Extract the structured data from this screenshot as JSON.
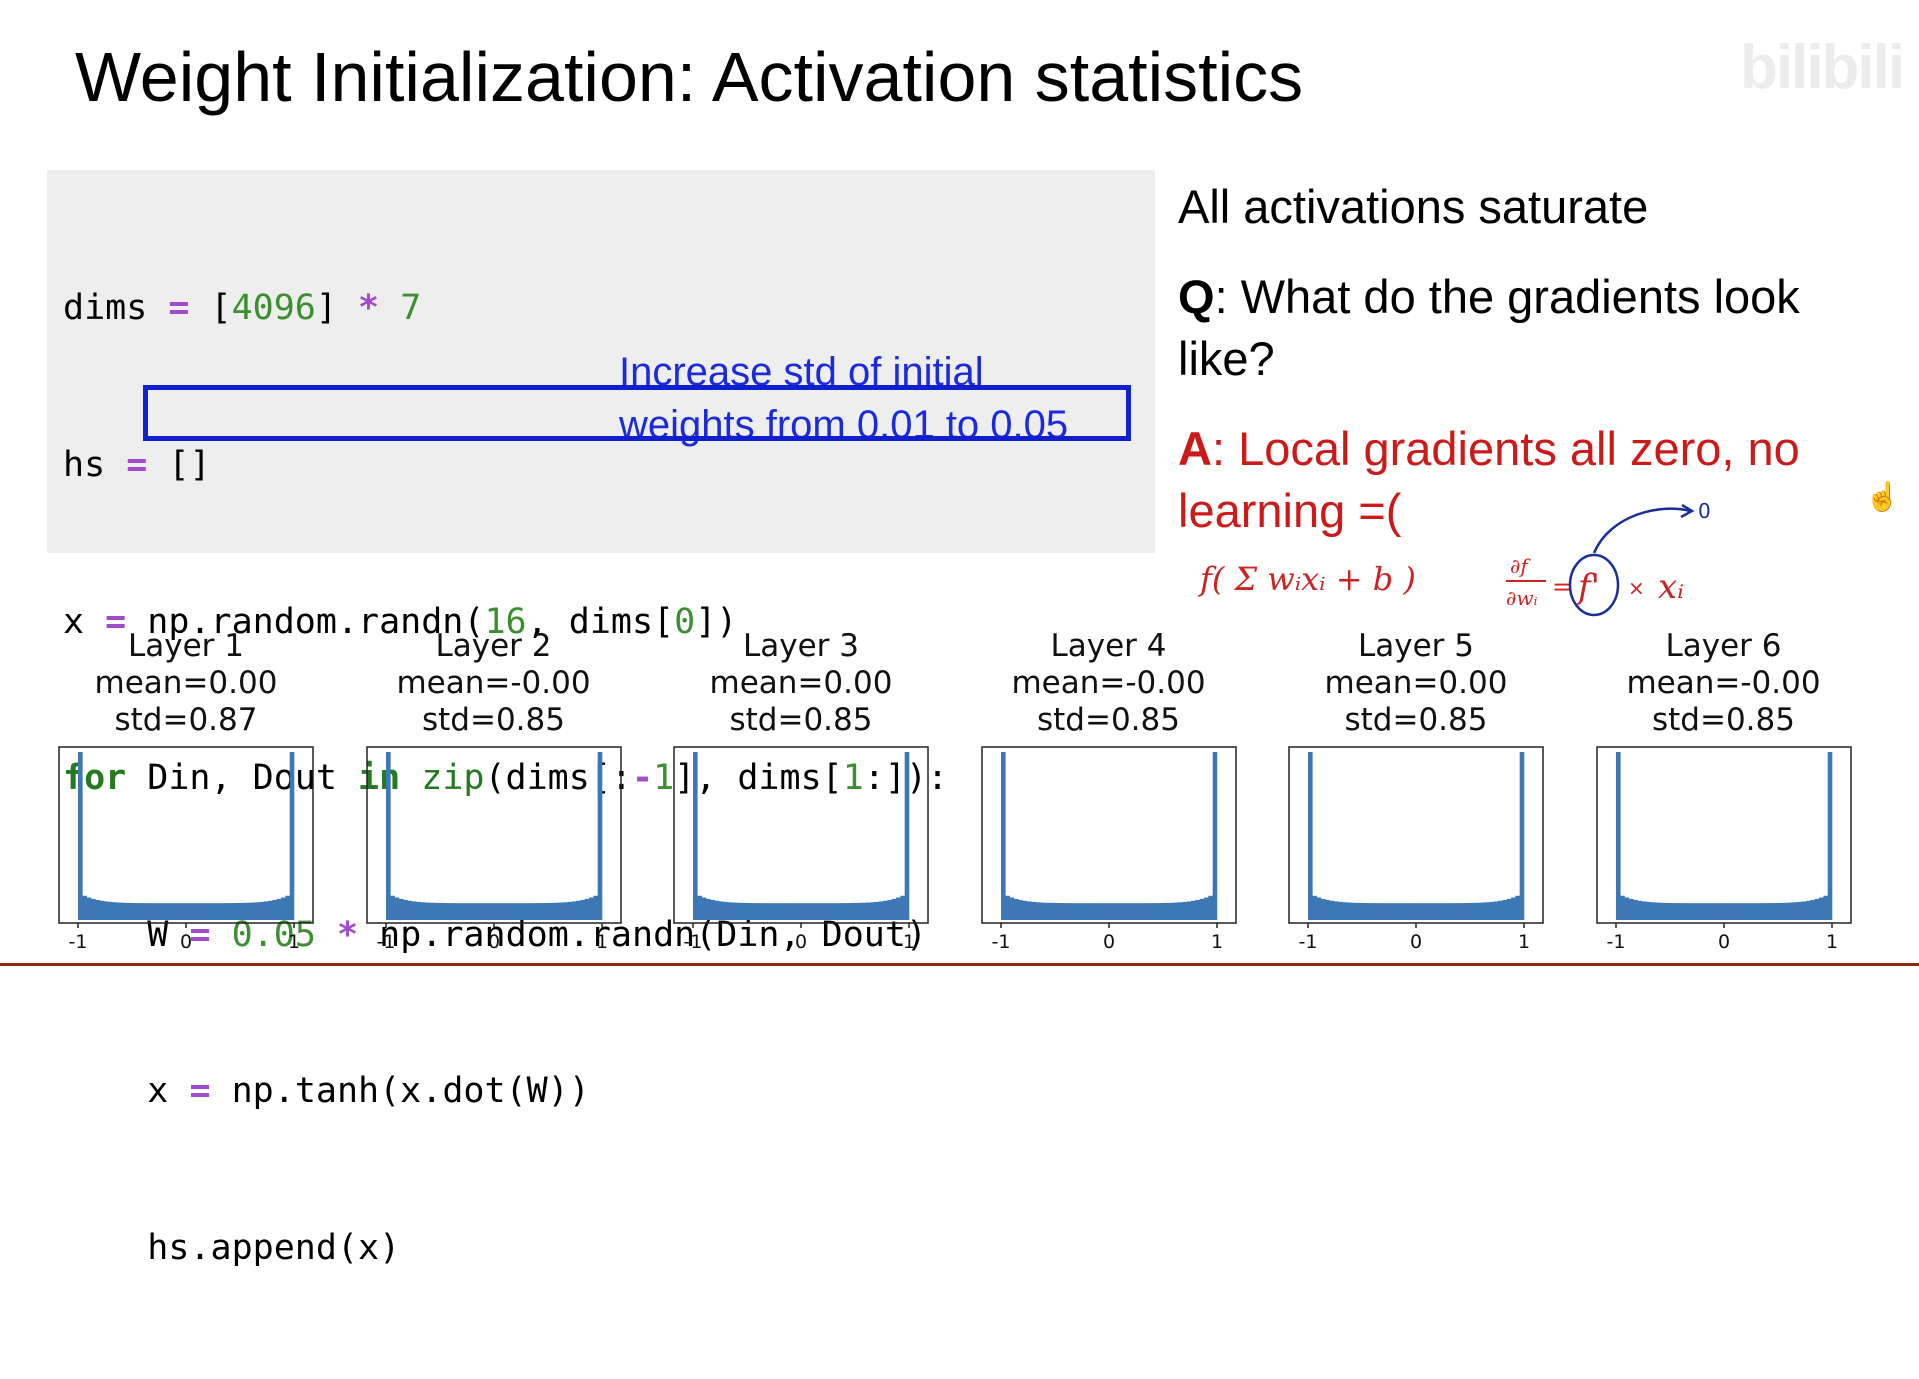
{
  "slide": {
    "title": "Weight Initialization: Activation statistics",
    "watermark": "bilibili"
  },
  "code": {
    "line1": {
      "a": "dims ",
      "op1": "=",
      "b": " [",
      "n1": "4096",
      "c": "] ",
      "op2": "*",
      "d": " ",
      "n2": "7"
    },
    "line2": {
      "a": "hs ",
      "op1": "=",
      "b": " []"
    },
    "line3": {
      "a": "x ",
      "op1": "=",
      "b": " np.random.randn(",
      "n1": "16",
      "c": ", dims[",
      "n2": "0",
      "d": "])"
    },
    "line4": {
      "kw1": "for",
      "a": " Din, Dout ",
      "kw2": "in",
      "b": " ",
      "fn": "zip",
      "c": "(dims[:",
      "op1": "-",
      "n1": "1",
      "d": "], dims[",
      "n2": "1",
      "e": ":]):"
    },
    "line5": {
      "indent": "    ",
      "a": "W ",
      "op1": "=",
      "b": " ",
      "n1": "0.05",
      "c": " ",
      "op2": "*",
      "d": " np.random.randn(Din, Dout)"
    },
    "line6": {
      "indent": "    ",
      "a": "x ",
      "op1": "=",
      "b": " np.tanh(x.dot(W))"
    },
    "line7": {
      "indent": "    ",
      "a": "hs.append(x)"
    },
    "note_line1": "Increase std of initial",
    "note_line2": "weights from 0.01 to 0.05"
  },
  "notes": {
    "saturate": "All activations saturate",
    "q_label": "Q",
    "q_text": ": What do the gradients look like?",
    "a_label": "A",
    "a_text": ": Local gradients all zero, no learning =("
  },
  "handwriting": {
    "f_expr": "f( Σ wᵢxᵢ + b )",
    "partial": "∂f",
    "partial_den": "∂wᵢ",
    "eq": "=",
    "fprime": "f'",
    "times": "×",
    "xi": "xᵢ",
    "zero": "0",
    "color": "#1a2f9a",
    "red_color": "#cc2222"
  },
  "chart_data": [
    {
      "type": "bar",
      "title": "Layer 1",
      "mean": "mean=0.00",
      "std": "std=0.87",
      "xticks": [
        "-1",
        "0",
        "1"
      ],
      "xlim": [
        -1,
        1
      ]
    },
    {
      "type": "bar",
      "title": "Layer 2",
      "mean": "mean=-0.00",
      "std": "std=0.85",
      "xticks": [
        "-1",
        "0",
        "1"
      ],
      "xlim": [
        -1,
        1
      ]
    },
    {
      "type": "bar",
      "title": "Layer 3",
      "mean": "mean=0.00",
      "std": "std=0.85",
      "xticks": [
        "-1",
        "0",
        "1"
      ],
      "xlim": [
        -1,
        1
      ]
    },
    {
      "type": "bar",
      "title": "Layer 4",
      "mean": "mean=-0.00",
      "std": "std=0.85",
      "xticks": [
        "-1",
        "0",
        "1"
      ],
      "xlim": [
        -1,
        1
      ]
    },
    {
      "type": "bar",
      "title": "Layer 5",
      "mean": "mean=0.00",
      "std": "std=0.85",
      "xticks": [
        "-1",
        "0",
        "1"
      ],
      "xlim": [
        -1,
        1
      ]
    },
    {
      "type": "bar",
      "title": "Layer 6",
      "mean": "mean=-0.00",
      "std": "std=0.85",
      "xticks": [
        "-1",
        "0",
        "1"
      ],
      "xlim": [
        -1,
        1
      ]
    }
  ],
  "histogram_color": "#3d78b4"
}
